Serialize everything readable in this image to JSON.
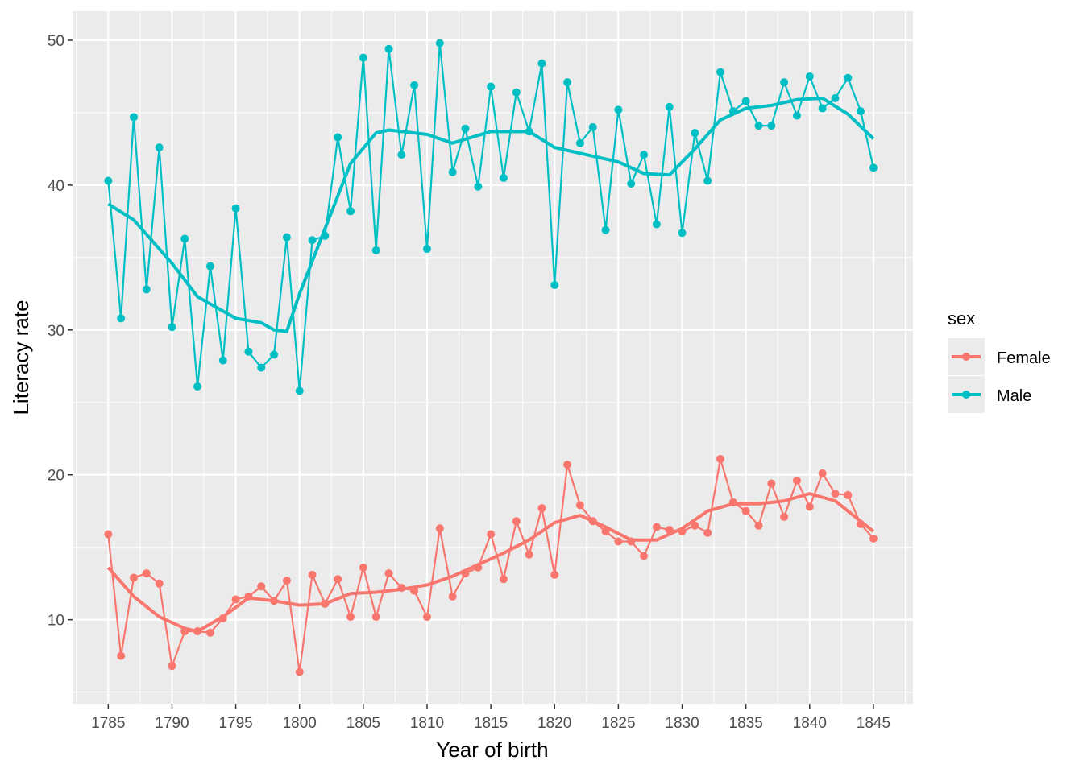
{
  "chart_data": {
    "type": "line",
    "title": "",
    "xlabel": "Year of birth",
    "ylabel": "Literacy rate",
    "xlim": [
      1782.2,
      1848.1
    ],
    "ylim": [
      4.2,
      52
    ],
    "x_ticks": [
      1785,
      1790,
      1795,
      1800,
      1805,
      1810,
      1815,
      1820,
      1825,
      1830,
      1835,
      1840,
      1845
    ],
    "y_ticks": [
      10,
      20,
      30,
      40,
      50
    ],
    "grid": true,
    "legend": {
      "title": "sex",
      "placement": "right",
      "entries": [
        "Female",
        "Male"
      ]
    },
    "x": [
      1785,
      1786,
      1787,
      1788,
      1789,
      1790,
      1791,
      1792,
      1793,
      1794,
      1795,
      1796,
      1797,
      1798,
      1799,
      1800,
      1801,
      1802,
      1803,
      1804,
      1805,
      1806,
      1807,
      1808,
      1809,
      1810,
      1811,
      1812,
      1813,
      1814,
      1815,
      1816,
      1817,
      1818,
      1819,
      1820,
      1821,
      1822,
      1823,
      1824,
      1825,
      1826,
      1827,
      1828,
      1829,
      1830,
      1831,
      1832,
      1833,
      1834,
      1835,
      1836,
      1837,
      1838,
      1839,
      1840,
      1841,
      1842,
      1843,
      1844,
      1845
    ],
    "series": [
      {
        "name": "Female",
        "color": "#F8766D",
        "values": [
          15.9,
          7.5,
          12.9,
          13.2,
          12.5,
          6.8,
          9.2,
          9.2,
          9.1,
          10.1,
          11.4,
          11.6,
          12.3,
          11.3,
          12.7,
          6.4,
          13.1,
          11.1,
          12.8,
          10.2,
          13.6,
          10.2,
          13.2,
          12.2,
          12.0,
          10.2,
          16.3,
          11.6,
          13.2,
          13.6,
          15.9,
          12.8,
          16.8,
          14.5,
          17.7,
          13.1,
          20.7,
          17.9,
          16.8,
          16.1,
          15.4,
          15.4,
          14.4,
          16.4,
          16.2,
          16.1,
          16.5,
          16.0,
          21.1,
          18.1,
          17.5,
          16.5,
          19.4,
          17.1,
          19.6,
          17.8,
          20.1,
          18.7,
          18.6,
          16.6,
          15.6
        ],
        "smooth_x": [
          1785,
          1787,
          1789,
          1791,
          1792,
          1794,
          1796,
          1798,
          1800,
          1802,
          1804,
          1806,
          1808,
          1810,
          1812,
          1814,
          1816,
          1818,
          1820,
          1822,
          1824,
          1826,
          1828,
          1830,
          1832,
          1834,
          1836,
          1838,
          1840,
          1842,
          1845
        ],
        "smooth": [
          13.6,
          11.6,
          10.2,
          9.4,
          9.2,
          10.2,
          11.5,
          11.3,
          11.0,
          11.1,
          11.8,
          11.9,
          12.1,
          12.4,
          13.0,
          13.8,
          14.6,
          15.5,
          16.7,
          17.2,
          16.4,
          15.5,
          15.5,
          16.3,
          17.5,
          18.0,
          18.0,
          18.2,
          18.7,
          18.2,
          16.1
        ]
      },
      {
        "name": "Male",
        "color": "#00BFC4",
        "values": [
          40.3,
          30.8,
          44.7,
          32.8,
          42.6,
          30.2,
          36.3,
          26.1,
          34.4,
          27.9,
          38.4,
          28.5,
          27.4,
          28.3,
          36.4,
          25.8,
          36.2,
          36.5,
          43.3,
          38.2,
          48.8,
          35.5,
          49.4,
          42.1,
          46.9,
          35.6,
          49.8,
          40.9,
          43.9,
          39.9,
          46.8,
          40.5,
          46.4,
          43.7,
          48.4,
          33.1,
          47.1,
          42.9,
          44.0,
          36.9,
          45.2,
          40.1,
          42.1,
          37.3,
          45.4,
          36.7,
          43.6,
          40.3,
          47.8,
          45.1,
          45.8,
          44.1,
          44.1,
          47.1,
          44.8,
          47.5,
          45.3,
          46.0,
          47.4,
          45.1,
          41.2
        ],
        "smooth_x": [
          1785,
          1787,
          1790,
          1792,
          1795,
          1797,
          1798,
          1799,
          1800,
          1802,
          1804,
          1806,
          1807,
          1810,
          1812,
          1815,
          1818,
          1820,
          1823,
          1825,
          1827,
          1829,
          1831,
          1833,
          1835,
          1837,
          1839,
          1841,
          1843,
          1845
        ],
        "smooth": [
          38.7,
          37.6,
          34.6,
          32.3,
          30.8,
          30.5,
          30.0,
          29.9,
          32.5,
          37.0,
          41.5,
          43.6,
          43.8,
          43.5,
          42.9,
          43.7,
          43.7,
          42.6,
          42.0,
          41.6,
          40.8,
          40.7,
          42.5,
          44.5,
          45.3,
          45.5,
          45.9,
          46.0,
          44.9,
          43.2
        ]
      }
    ]
  }
}
